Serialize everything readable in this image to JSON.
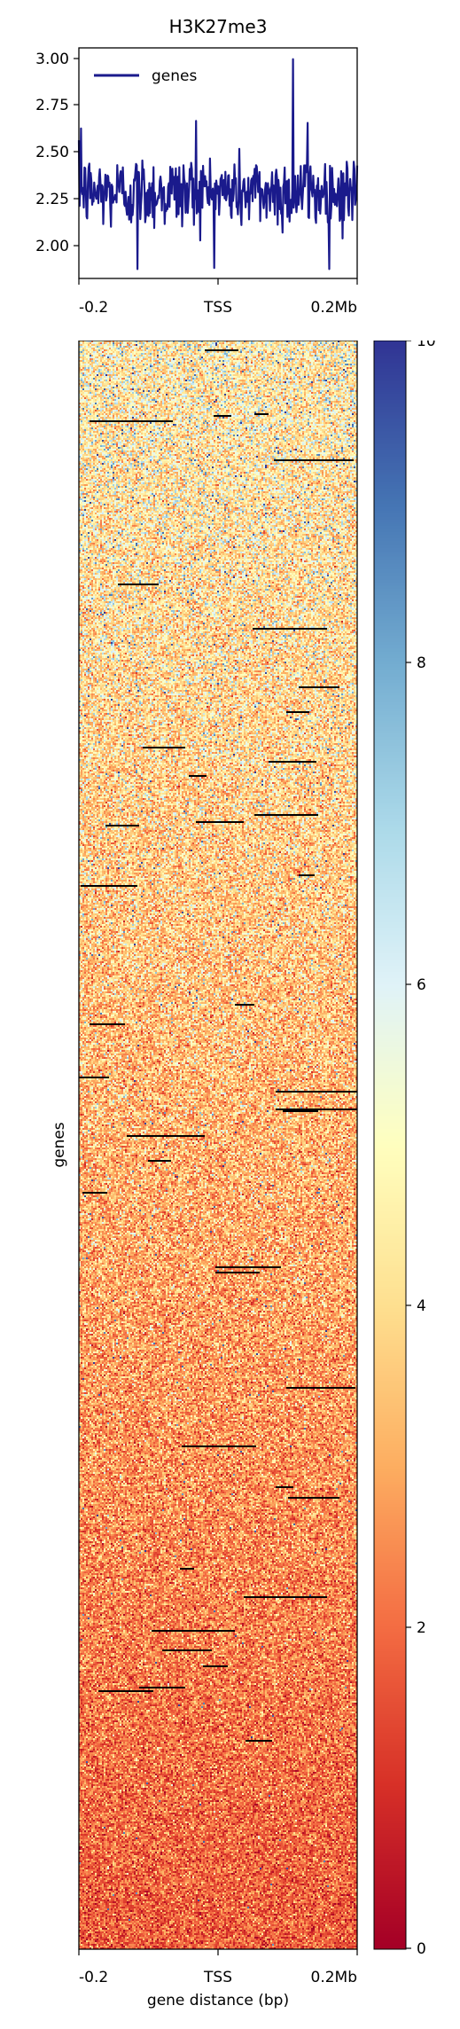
{
  "title": "H3K27me3",
  "profile": {
    "series_name": "genes",
    "line_color": "#1a1a8c",
    "yticks": [
      "3.00",
      "2.75",
      "2.50",
      "2.25",
      "2.00"
    ],
    "xticks": [
      "-0.2",
      "TSS",
      "0.2Mb"
    ]
  },
  "heatmap": {
    "ylabel": "genes",
    "xlabel": "gene distance (bp)",
    "xticks": [
      "-0.2",
      "TSS",
      "0.2Mb"
    ],
    "colormap": "RdYlBu",
    "colorbar_ticks": [
      "10",
      "8",
      "6",
      "4",
      "2",
      "0"
    ]
  },
  "chart_data": [
    {
      "type": "line",
      "title": "H3K27me3",
      "series": [
        {
          "name": "genes"
        }
      ],
      "x": [
        -0.2,
        0,
        0.2
      ],
      "xtick_labels": [
        "-0.2",
        "TSS",
        "0.2Mb"
      ],
      "ylim": [
        1.82,
        3.05
      ],
      "yticks": [
        2.0,
        2.25,
        2.5,
        2.75,
        3.0
      ],
      "mean_level": 2.28,
      "max_value": 2.99,
      "min_value": 1.87,
      "legend": "top-left"
    },
    {
      "type": "heatmap",
      "xlabel": "gene distance (bp)",
      "ylabel": "genes",
      "xtick_labels": [
        "-0.2",
        "TSS",
        "0.2Mb"
      ],
      "color_range": [
        0,
        10
      ],
      "colorbar_ticks": [
        0,
        2,
        4,
        6,
        8,
        10
      ],
      "colormap": "RdYlBu"
    }
  ]
}
